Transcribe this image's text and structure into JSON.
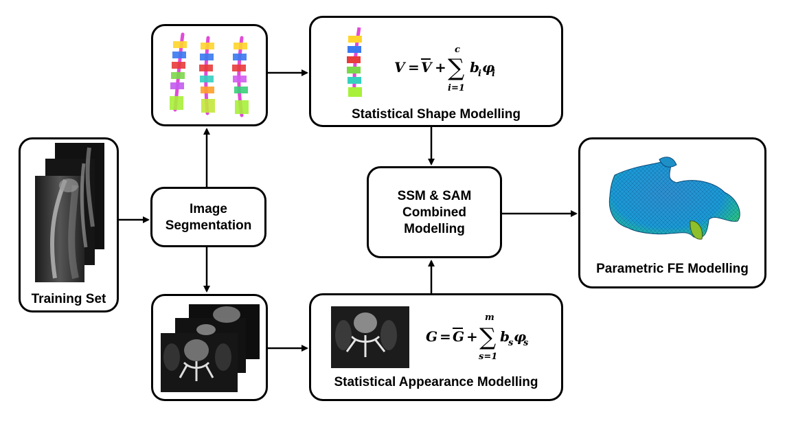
{
  "nodes": {
    "training_set": "Training Set",
    "image_segmentation": [
      "Image",
      "Segmentation"
    ],
    "ssm": "Statistical Shape Modelling",
    "sam": "Statistical Appearance Modelling",
    "combined": [
      "SSM & SAM",
      "Combined",
      "Modelling"
    ],
    "fe": "Parametric FE Modelling"
  },
  "equations": {
    "shape": {
      "lhs": "V",
      "bar": "V",
      "coef": "b",
      "coef_sub": "i",
      "basis": "φ",
      "basis_sub": "i",
      "sum_lower": "i=1",
      "sum_upper": "c"
    },
    "appearance": {
      "lhs": "G",
      "bar": "G",
      "coef": "b",
      "coef_sub": "s",
      "basis": "φ",
      "basis_sub": "s",
      "sum_lower": "s=1",
      "sum_upper": "m"
    }
  }
}
